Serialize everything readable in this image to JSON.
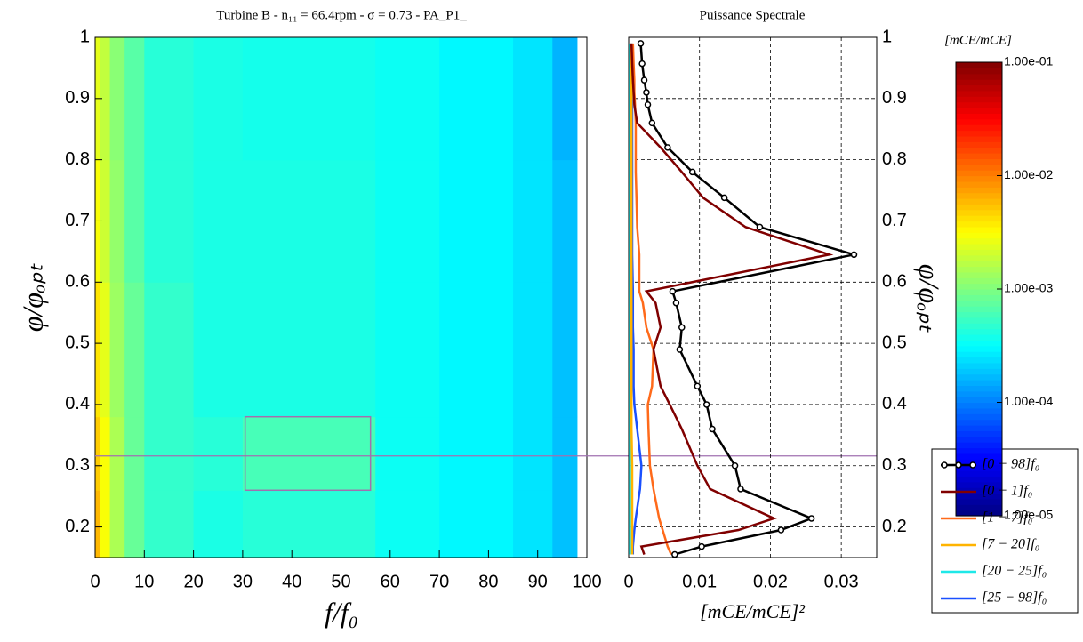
{
  "chart_data": [
    {
      "type": "heatmap",
      "title": "Turbine B - n₁₁ = 66.4rpm - σ = 0.73 - PA_P1_",
      "x_label": "f/f₀",
      "y_label": "φ/φₒₚₜ",
      "xlim": [
        0,
        100
      ],
      "ylim": [
        0.15,
        1
      ],
      "xticks": [
        0,
        10,
        20,
        30,
        40,
        50,
        60,
        70,
        80,
        90,
        100
      ],
      "yticks": [
        0.2,
        0.3,
        0.4,
        0.5,
        0.6,
        0.7,
        0.8,
        0.9,
        1
      ],
      "x_bins": [
        0,
        1,
        3,
        6,
        10,
        20,
        30,
        57,
        70,
        85,
        93,
        98
      ],
      "y_bins": [
        0.15,
        0.26,
        0.38,
        0.6,
        0.8,
        1
      ],
      "z": [
        [
          0.006,
          0.003,
          0.0015,
          0.0008,
          0.0005,
          0.0004,
          0.00045,
          0.00035,
          0.0003,
          0.00025,
          0.00018
        ],
        [
          0.005,
          0.003,
          0.0015,
          0.0008,
          0.0005,
          0.00045,
          0.0006,
          0.00035,
          0.0003,
          0.00025,
          0.00018
        ],
        [
          0.004,
          0.0025,
          0.0013,
          0.0008,
          0.0005,
          0.0004,
          0.0004,
          0.00035,
          0.0003,
          0.00025,
          0.00018
        ],
        [
          0.003,
          0.002,
          0.0012,
          0.0007,
          0.00045,
          0.0004,
          0.0004,
          0.00035,
          0.0003,
          0.00025,
          0.00018
        ],
        [
          0.0025,
          0.0018,
          0.0011,
          0.0007,
          0.00045,
          0.0004,
          0.00038,
          0.00035,
          0.0003,
          0.00025,
          0.00016
        ]
      ],
      "colorscale": "jet",
      "zlog": true,
      "zlim": [
        1e-05,
        0.1
      ],
      "colorbar_title": "[mCE/mCE]",
      "colorbar_ticks": [
        {
          "value": 0.1,
          "label": "1.00e-01"
        },
        {
          "value": 0.01,
          "label": "1.00e-02"
        },
        {
          "value": 0.001,
          "label": "1.00e-03"
        },
        {
          "value": 0.0001,
          "label": "1.00e-04"
        },
        {
          "value": 1e-05,
          "label": "1.00e-05"
        }
      ],
      "highlight_box": {
        "x": [
          30.5,
          56
        ],
        "y": [
          0.26,
          0.38
        ],
        "color": "#a070b0"
      },
      "marker_line_y": 0.316
    },
    {
      "type": "line",
      "title": "Puissance Spectrale",
      "x_label": "[mCE/mCE]²",
      "y_label": "φ/φₒₚₜ",
      "xlim": [
        0,
        0.035
      ],
      "ylim": [
        0.15,
        1
      ],
      "xticks": [
        0,
        0.01,
        0.02,
        0.03
      ],
      "yticks": [
        0.2,
        0.3,
        0.4,
        0.5,
        0.6,
        0.7,
        0.8,
        0.9,
        1
      ],
      "grid": true,
      "y": [
        0.155,
        0.168,
        0.195,
        0.214,
        0.262,
        0.3,
        0.36,
        0.4,
        0.43,
        0.49,
        0.526,
        0.566,
        0.585,
        0.645,
        0.69,
        0.738,
        0.78,
        0.82,
        0.86,
        0.89,
        0.91,
        0.93,
        0.957,
        0.99
      ],
      "series": [
        {
          "name": "[0 − 98]f₀",
          "color": "#000000",
          "marker": true,
          "x": [
            0.0065,
            0.0103,
            0.0215,
            0.0258,
            0.0158,
            0.015,
            0.0118,
            0.011,
            0.0097,
            0.0072,
            0.0075,
            0.0067,
            0.0062,
            0.0318,
            0.0185,
            0.0135,
            0.009,
            0.0055,
            0.0033,
            0.0027,
            0.0025,
            0.0022,
            0.0019,
            0.0017
          ]
        },
        {
          "name": "[0 − 1]f₀",
          "color": "#800000",
          "x": [
            0.0022,
            0.0018,
            0.0155,
            0.0205,
            0.0115,
            0.0097,
            0.0075,
            0.0058,
            0.0045,
            0.0035,
            0.0045,
            0.0038,
            0.0025,
            0.0283,
            0.0165,
            0.0105,
            0.0075,
            0.0045,
            0.0012,
            0.0008,
            0.0007,
            0.0006,
            0.0005,
            0.0004
          ]
        },
        {
          "name": "[1 − 7]f₀",
          "color": "#ff6a1a",
          "x": [
            0.006,
            0.0055,
            0.0048,
            0.0043,
            0.0035,
            0.003,
            0.0028,
            0.0027,
            0.0033,
            0.0035,
            0.0025,
            0.002,
            0.0015,
            0.0015,
            0.0012,
            0.0011,
            0.001,
            0.001,
            0.001,
            0.0009,
            0.0008,
            0.0008,
            0.0007,
            0.0006
          ]
        },
        {
          "name": "[7 − 20]f₀",
          "color": "#ffb400",
          "x": [
            0.0005,
            0.0005,
            0.0005,
            0.0005,
            0.0005,
            0.0005,
            0.0004,
            0.0004,
            0.0004,
            0.0004,
            0.0004,
            0.0004,
            0.0004,
            0.0004,
            0.0004,
            0.0004,
            0.0004,
            0.0004,
            0.0004,
            0.0004,
            0.0004,
            0.0004,
            0.0004,
            0.0004
          ]
        },
        {
          "name": "[20 − 25]f₀",
          "color": "#1ee8e8",
          "x": [
            0.0002,
            0.0002,
            0.0002,
            0.0002,
            0.0002,
            0.0002,
            0.0002,
            0.0002,
            0.0002,
            0.0002,
            0.0002,
            0.0002,
            0.0002,
            0.0002,
            0.0002,
            0.0002,
            0.0002,
            0.0002,
            0.0002,
            0.0002,
            0.0002,
            0.0002,
            0.0002,
            0.0002
          ]
        },
        {
          "name": "[25 − 98]f₀",
          "color": "#1a50ff",
          "x": [
            0.0006,
            0.0006,
            0.0008,
            0.001,
            0.0016,
            0.0018,
            0.0012,
            0.0008,
            0.0007,
            0.0007,
            0.0006,
            0.0006,
            0.0006,
            0.0005,
            0.0005,
            0.0005,
            0.0005,
            0.0005,
            0.0005,
            0.0005,
            0.0004,
            0.0004,
            0.0004,
            0.0004
          ]
        }
      ]
    }
  ]
}
